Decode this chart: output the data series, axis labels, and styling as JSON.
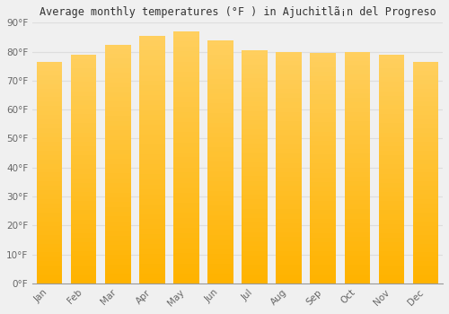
{
  "title": "Average monthly temperatures (°F ) in Ajuchitlã¡n del Progreso",
  "months": [
    "Jan",
    "Feb",
    "Mar",
    "Apr",
    "May",
    "Jun",
    "Jul",
    "Aug",
    "Sep",
    "Oct",
    "Nov",
    "Dec"
  ],
  "values": [
    76.5,
    79.0,
    82.5,
    85.5,
    87.0,
    84.0,
    80.5,
    80.0,
    79.5,
    80.0,
    79.0,
    76.5
  ],
  "bar_color_bottom": "#FFB300",
  "bar_color_top": "#FDD060",
  "background_color": "#F0F0F0",
  "grid_color": "#DDDDDD",
  "ylim": [
    0,
    90
  ],
  "yticks": [
    0,
    10,
    20,
    30,
    40,
    50,
    60,
    70,
    80,
    90
  ],
  "ytick_labels": [
    "0°F",
    "10°F",
    "20°F",
    "30°F",
    "40°F",
    "50°F",
    "60°F",
    "70°F",
    "80°F",
    "90°F"
  ],
  "title_fontsize": 8.5,
  "tick_fontsize": 7.5,
  "bar_width": 0.75
}
